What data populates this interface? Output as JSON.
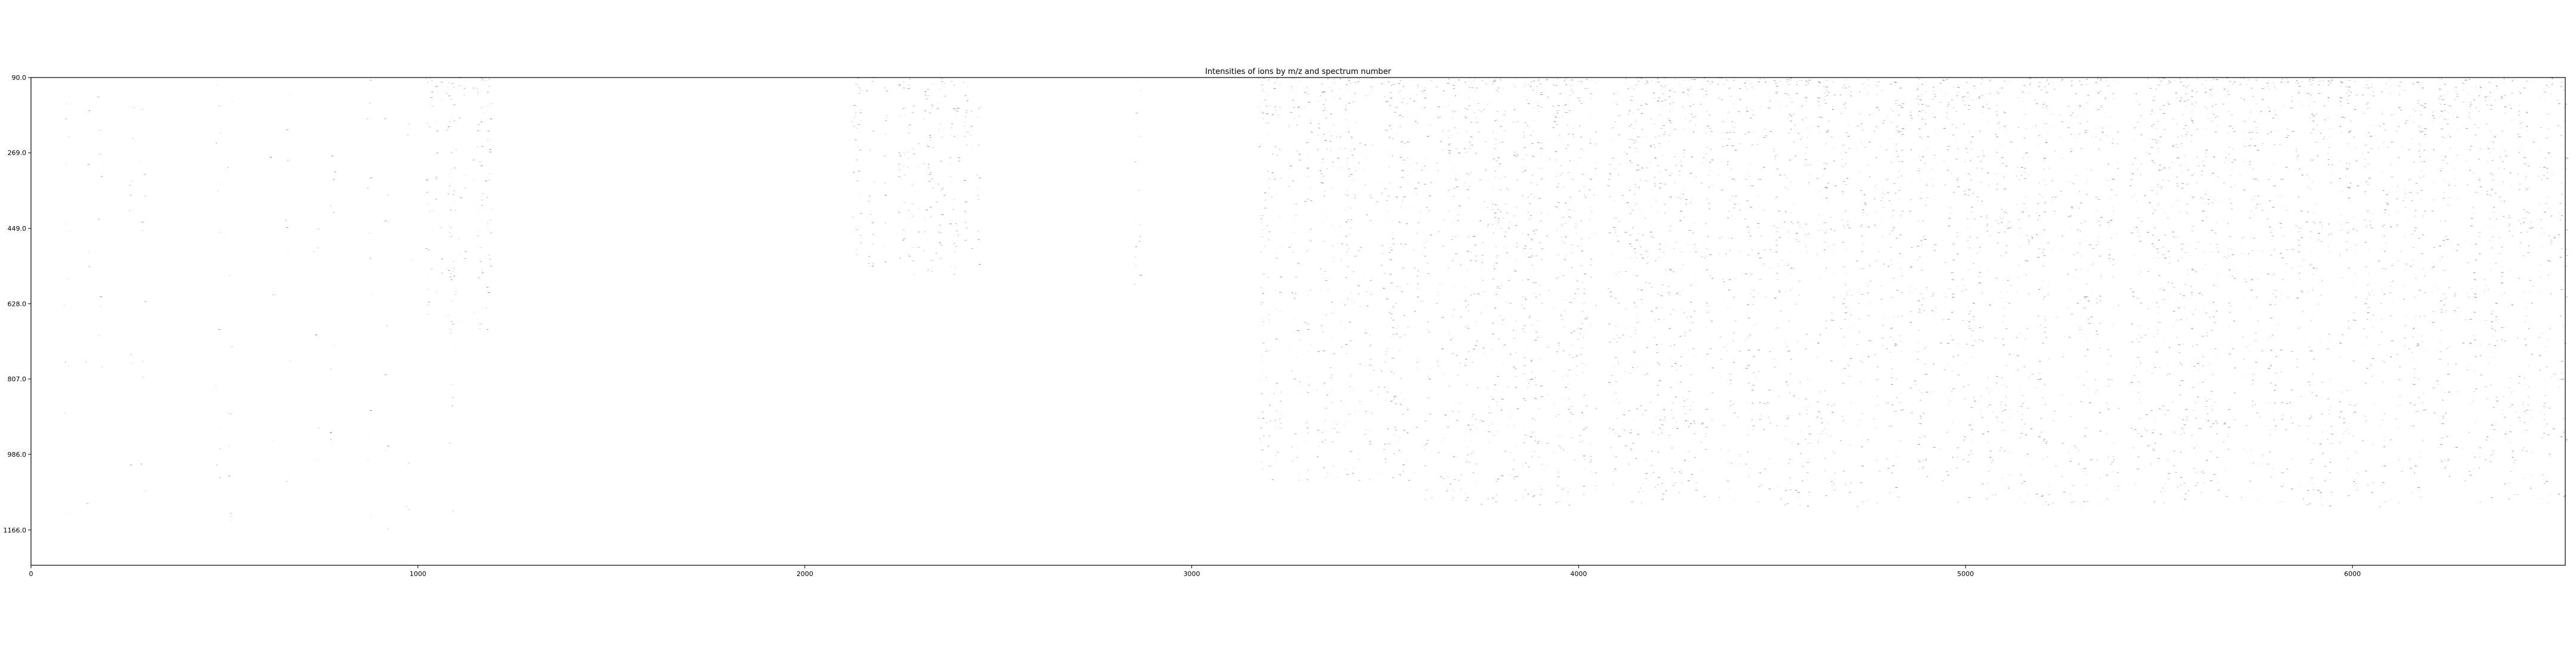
{
  "chart_data": {
    "type": "heatmap",
    "title": "Intensities of ions by m/z and spectrum number",
    "xlabel": "",
    "ylabel": "",
    "xlim": [
      0,
      6550
    ],
    "ylim": [
      90.0,
      1250.0
    ],
    "y_inverted": true,
    "grid": false,
    "colormap": "gray_r",
    "x_ticks": [
      0,
      1000,
      2000,
      3000,
      4000,
      5000,
      6000
    ],
    "x_tick_labels": [
      "0",
      "1000",
      "2000",
      "3000",
      "4000",
      "5000",
      "6000"
    ],
    "y_ticks": [
      90.0,
      269.0,
      449.0,
      628.0,
      807.0,
      986.0,
      1166.0
    ],
    "y_tick_labels": [
      "90.0",
      "269.0",
      "449.0",
      "628.0",
      "807.0",
      "986.0",
      "1166.0"
    ],
    "clusters": [
      {
        "x": [
          0,
          1200
        ],
        "mz": [
          90,
          1166
        ],
        "density": "low"
      },
      {
        "x": [
          1020,
          1200
        ],
        "mz": [
          90,
          720
        ],
        "density": "medium"
      },
      {
        "x": [
          2120,
          2450
        ],
        "mz": [
          90,
          560
        ],
        "density": "medium"
      },
      {
        "x": [
          2850,
          2880
        ],
        "mz": [
          90,
          640
        ],
        "density": "medium"
      },
      {
        "x": [
          3170,
          3600
        ],
        "mz": [
          90,
          1050
        ],
        "density": "high"
      },
      {
        "x": [
          3600,
          6550
        ],
        "mz": [
          90,
          1110
        ],
        "density": "high"
      }
    ]
  }
}
